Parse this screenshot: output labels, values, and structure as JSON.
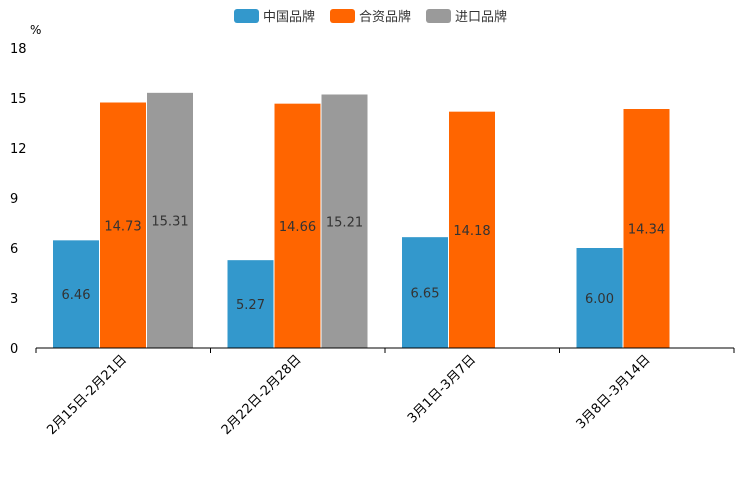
{
  "chart_data": {
    "type": "bar",
    "title": "",
    "unit_label": "%",
    "xlabel": "",
    "ylabel": "%",
    "ylim": [
      0,
      18
    ],
    "yticks": [
      0,
      3,
      6,
      9,
      12,
      15,
      18
    ],
    "grid": false,
    "legend_position": "top-center",
    "categories": [
      "2月15日-2月21日",
      "2月22日-2月28日",
      "3月1日-3月7日",
      "3月8日-3月14日"
    ],
    "series": [
      {
        "name": "中国品牌",
        "color": "#3398cc",
        "values": [
          6.46,
          5.27,
          6.65,
          6.0
        ],
        "labels": [
          "6.46",
          "5.27",
          "6.65",
          "6.00"
        ]
      },
      {
        "name": "合资品牌",
        "color": "#ff6500",
        "values": [
          14.73,
          14.66,
          14.18,
          14.34
        ],
        "labels": [
          "14.73",
          "14.66",
          "14.18",
          "14.34"
        ]
      },
      {
        "name": "进口品牌",
        "color": "#9a9a9a",
        "values": [
          15.31,
          15.21,
          null,
          null
        ],
        "labels": [
          "15.31",
          "15.21",
          "",
          ""
        ]
      }
    ]
  }
}
